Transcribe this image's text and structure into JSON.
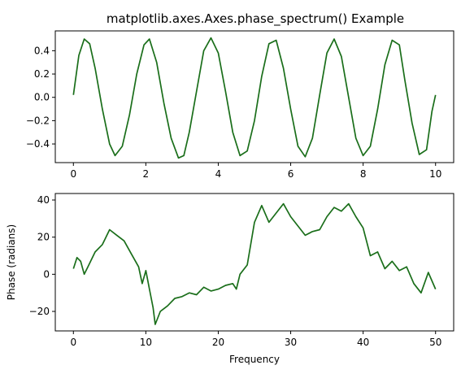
{
  "figure": {
    "title": "matplotlib.axes.Axes.phase_spectrum() Example",
    "line_color": "#1a6e1a"
  },
  "chart_data": [
    {
      "type": "line",
      "title": "matplotlib.axes.Axes.phase_spectrum() Example",
      "xlabel": "",
      "ylabel": "",
      "xlim": [
        -0.5,
        10.5
      ],
      "ylim": [
        -0.56,
        0.57
      ],
      "xticks": [
        0,
        2,
        4,
        6,
        8,
        10
      ],
      "xtick_labels": [
        "0",
        "2",
        "4",
        "6",
        "8",
        "10"
      ],
      "yticks": [
        -0.4,
        -0.2,
        0.0,
        0.2,
        0.4
      ],
      "ytick_labels": [
        "−0.4",
        "−0.2",
        "0.0",
        "0.2",
        "0.4"
      ],
      "grid": false,
      "series": [
        {
          "color": "#1a6e1a",
          "x": [
            0,
            0.15,
            0.3,
            0.45,
            0.6,
            0.8,
            1.0,
            1.15,
            1.35,
            1.55,
            1.75,
            1.95,
            2.1,
            2.3,
            2.5,
            2.7,
            2.9,
            3.05,
            3.2,
            3.4,
            3.6,
            3.8,
            4.0,
            4.2,
            4.4,
            4.6,
            4.8,
            5.0,
            5.2,
            5.4,
            5.6,
            5.8,
            6.0,
            6.2,
            6.4,
            6.6,
            6.8,
            7.0,
            7.2,
            7.4,
            7.6,
            7.8,
            8.0,
            8.2,
            8.4,
            8.6,
            8.8,
            9.0,
            9.15,
            9.35,
            9.55,
            9.75,
            9.9,
            10.0
          ],
          "y": [
            0.02,
            0.36,
            0.5,
            0.46,
            0.25,
            -0.1,
            -0.4,
            -0.5,
            -0.42,
            -0.15,
            0.2,
            0.45,
            0.5,
            0.3,
            -0.05,
            -0.35,
            -0.52,
            -0.5,
            -0.3,
            0.05,
            0.4,
            0.51,
            0.38,
            0.05,
            -0.3,
            -0.5,
            -0.46,
            -0.2,
            0.18,
            0.46,
            0.49,
            0.25,
            -0.1,
            -0.42,
            -0.51,
            -0.35,
            0.02,
            0.38,
            0.5,
            0.35,
            0.0,
            -0.35,
            -0.5,
            -0.42,
            -0.1,
            0.28,
            0.49,
            0.45,
            0.15,
            -0.22,
            -0.49,
            -0.45,
            -0.12,
            0.02
          ]
        }
      ]
    },
    {
      "type": "line",
      "title": "",
      "xlabel": "Frequency",
      "ylabel": "Phase (radians)",
      "xlim": [
        -2.5,
        52.5
      ],
      "ylim": [
        -30.5,
        43.5
      ],
      "xticks": [
        0,
        10,
        20,
        30,
        40,
        50
      ],
      "xtick_labels": [
        "0",
        "10",
        "20",
        "30",
        "40",
        "50"
      ],
      "yticks": [
        -20,
        0,
        20,
        40
      ],
      "ytick_labels": [
        "−20",
        "0",
        "20",
        "40"
      ],
      "grid": false,
      "series": [
        {
          "color": "#1a6e1a",
          "x": [
            0,
            0.5,
            1,
            1.5,
            2,
            3,
            4,
            5,
            6,
            7,
            8,
            9,
            9.5,
            10,
            10.5,
            11,
            11.3,
            12,
            13,
            14,
            15,
            16,
            17,
            18,
            19,
            20,
            21,
            22,
            22.5,
            23,
            24,
            25,
            26,
            27,
            28,
            29,
            30,
            31,
            32,
            33,
            34,
            35,
            36,
            37,
            38,
            39,
            40,
            41,
            42,
            43,
            44,
            45,
            46,
            47,
            48,
            49,
            50
          ],
          "y": [
            3,
            9,
            7,
            0,
            4,
            12,
            16,
            24,
            21,
            18,
            11,
            4,
            -5,
            2,
            -8,
            -18,
            -27,
            -20,
            -17,
            -13,
            -12,
            -10,
            -11,
            -7,
            -9,
            -8,
            -6,
            -5,
            -8,
            0,
            5,
            28,
            37,
            28,
            33,
            38,
            31,
            26,
            21,
            23,
            24,
            31,
            36,
            34,
            38,
            31,
            25,
            10,
            12,
            3,
            7,
            2,
            4,
            -5,
            -10,
            1,
            -8
          ]
        }
      ]
    }
  ]
}
